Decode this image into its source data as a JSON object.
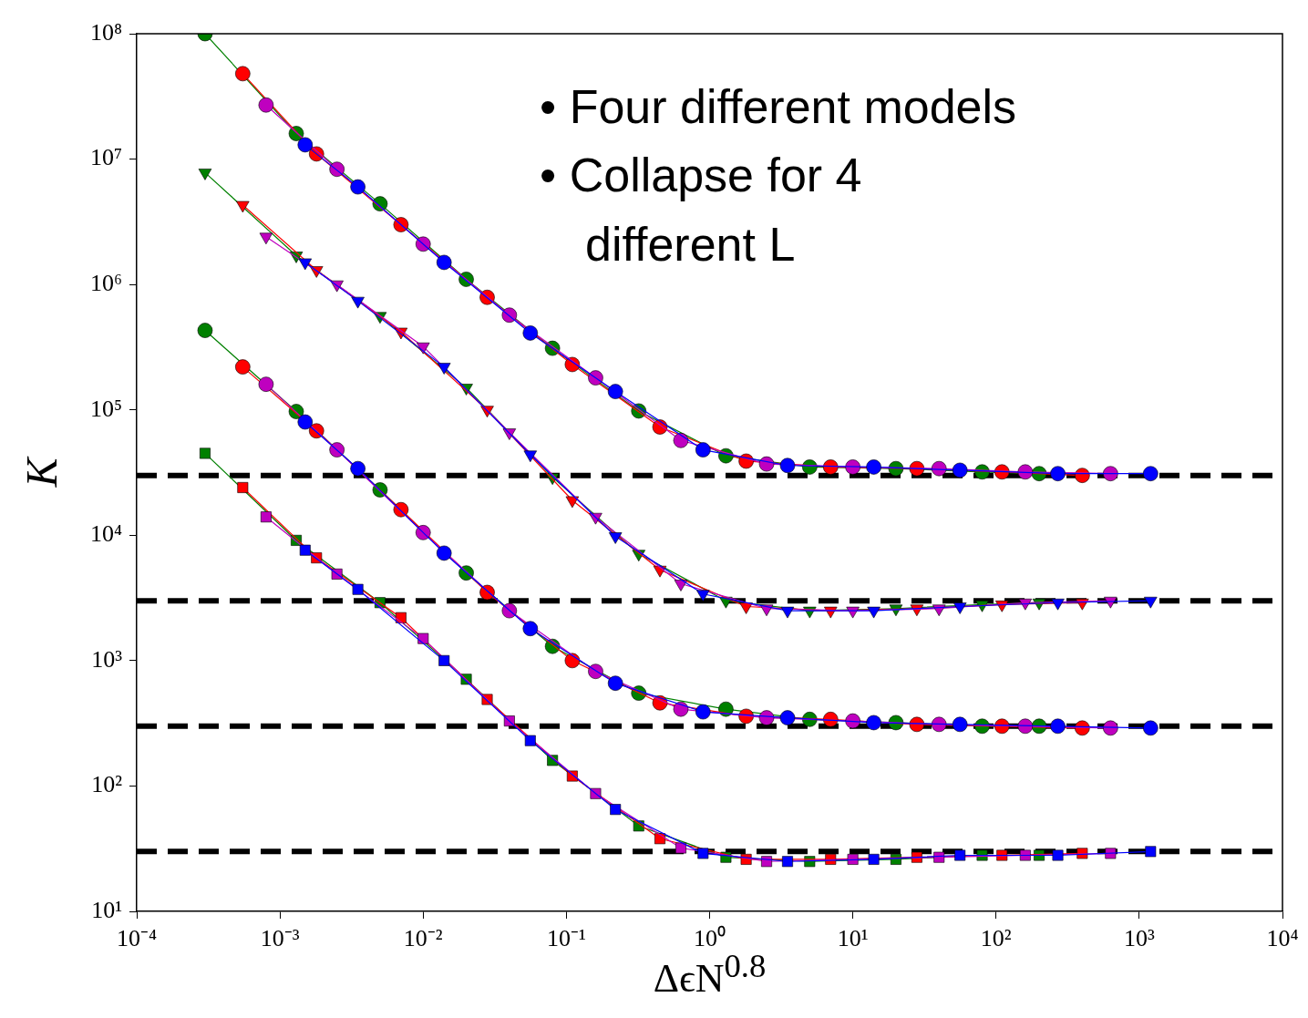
{
  "chart_data": {
    "type": "line",
    "xlabel": "ΔϵN$^{0.8}$",
    "ylabel": "K",
    "log": "xy",
    "grid": false,
    "legend": false,
    "xlim": [
      0.0001,
      10000
    ],
    "ylim": [
      10,
      100000000
    ],
    "xticks": [
      {
        "value": 0.0001,
        "label": "10⁻⁴"
      },
      {
        "value": 0.001,
        "label": "10⁻³"
      },
      {
        "value": 0.01,
        "label": "10⁻²"
      },
      {
        "value": 0.1,
        "label": "10⁻¹"
      },
      {
        "value": 1,
        "label": "10⁰"
      },
      {
        "value": 10,
        "label": "10¹"
      },
      {
        "value": 100,
        "label": "10²"
      },
      {
        "value": 1000,
        "label": "10³"
      },
      {
        "value": 10000,
        "label": "10⁴"
      }
    ],
    "yticks": [
      {
        "value": 10,
        "label": "10¹"
      },
      {
        "value": 100,
        "label": "10²"
      },
      {
        "value": 1000,
        "label": "10³"
      },
      {
        "value": 10000,
        "label": "10⁴"
      },
      {
        "value": 100000,
        "label": "10⁵"
      },
      {
        "value": 1000000,
        "label": "10⁶"
      },
      {
        "value": 10000000,
        "label": "10⁷"
      },
      {
        "value": 100000000,
        "label": "10⁸"
      }
    ],
    "annotations": [
      "• Four different models",
      "• Collapse for 4 different L"
    ],
    "ref_lines": [
      {
        "axis": "y",
        "value": 30000,
        "color": "#000000",
        "line_style": "dashed"
      },
      {
        "axis": "y",
        "value": 3000,
        "color": "#000000",
        "line_style": "dashed"
      },
      {
        "axis": "y",
        "value": 300,
        "color": "#000000",
        "line_style": "dashed"
      },
      {
        "axis": "y",
        "value": 30,
        "color": "#000000",
        "line_style": "dashed"
      }
    ],
    "series": [
      {
        "color": "#008000",
        "marker": "circle",
        "x": [
          0.0003,
          0.0013,
          0.005,
          0.02,
          0.08,
          0.32,
          1.3,
          5,
          20,
          80,
          200
        ],
        "values": [
          100000000,
          16000000,
          4400000,
          1100000,
          310000,
          98000,
          43000,
          35000,
          34000,
          32000,
          31000
        ]
      },
      {
        "color": "#ff0000",
        "marker": "circle",
        "x": [
          0.00055,
          0.0018,
          0.007,
          0.028,
          0.11,
          0.45,
          1.8,
          7,
          28,
          110,
          400
        ],
        "values": [
          48000000,
          11000000,
          3000000,
          790000,
          230000,
          73000,
          39000,
          35000,
          34000,
          32000,
          30000
        ]
      },
      {
        "color": "#bf00bf",
        "marker": "circle",
        "x": [
          0.0008,
          0.0025,
          0.01,
          0.04,
          0.16,
          0.63,
          2.5,
          10,
          40,
          160,
          630
        ],
        "values": [
          27000000,
          8300000,
          2100000,
          570000,
          180000,
          57000,
          37000,
          35000,
          34000,
          32000,
          31000
        ]
      },
      {
        "color": "#0000ff",
        "marker": "circle",
        "x": [
          0.0015,
          0.0035,
          0.014,
          0.056,
          0.22,
          0.9,
          3.5,
          14,
          56,
          270,
          1200
        ],
        "values": [
          13000000,
          6000000,
          1500000,
          410000,
          140000,
          48000,
          36000,
          35000,
          33000,
          31000,
          31000
        ]
      },
      {
        "color": "#008000",
        "marker": "triangle",
        "x": [
          0.0003,
          0.0013,
          0.005,
          0.02,
          0.08,
          0.32,
          1.3,
          5,
          20,
          80,
          200
        ],
        "values": [
          7800000,
          1700000,
          560000,
          150000,
          29000,
          7100,
          3000,
          2500,
          2600,
          2800,
          2900
        ]
      },
      {
        "color": "#ff0000",
        "marker": "triangle",
        "x": [
          0.00055,
          0.0018,
          0.007,
          0.028,
          0.11,
          0.45,
          1.8,
          7,
          28,
          110,
          400
        ],
        "values": [
          4300000,
          1300000,
          420000,
          100000,
          19000,
          5300,
          2700,
          2500,
          2600,
          2800,
          2900
        ]
      },
      {
        "color": "#bf00bf",
        "marker": "triangle",
        "x": [
          0.0008,
          0.0025,
          0.01,
          0.04,
          0.16,
          0.63,
          2.5,
          10,
          40,
          160,
          630
        ],
        "values": [
          2400000,
          1000000,
          320000,
          66000,
          14000,
          4100,
          2600,
          2500,
          2600,
          2900,
          3000
        ]
      },
      {
        "color": "#0000ff",
        "marker": "triangle",
        "x": [
          0.0015,
          0.0035,
          0.014,
          0.056,
          0.22,
          0.9,
          3.5,
          14,
          56,
          270,
          1200
        ],
        "values": [
          1500000,
          740000,
          220000,
          44000,
          9800,
          3400,
          2500,
          2500,
          2700,
          2900,
          3000
        ]
      },
      {
        "color": "#008000",
        "marker": "circle",
        "x": [
          0.0003,
          0.0013,
          0.005,
          0.02,
          0.08,
          0.32,
          1.3,
          5,
          20,
          80,
          200
        ],
        "values": [
          430000,
          97000,
          23000,
          5000,
          1300,
          550,
          410,
          340,
          320,
          300,
          300
        ]
      },
      {
        "color": "#ff0000",
        "marker": "circle",
        "x": [
          0.00055,
          0.0018,
          0.007,
          0.028,
          0.11,
          0.45,
          1.8,
          7,
          28,
          110,
          400
        ],
        "values": [
          220000,
          68000,
          16000,
          3500,
          1000,
          460,
          360,
          340,
          310,
          300,
          290
        ]
      },
      {
        "color": "#bf00bf",
        "marker": "circle",
        "x": [
          0.0008,
          0.0025,
          0.01,
          0.04,
          0.16,
          0.63,
          2.5,
          10,
          40,
          160,
          630
        ],
        "values": [
          160000,
          48000,
          10500,
          2500,
          820,
          410,
          350,
          330,
          310,
          300,
          290
        ]
      },
      {
        "color": "#0000ff",
        "marker": "circle",
        "x": [
          0.0015,
          0.0035,
          0.014,
          0.056,
          0.22,
          0.9,
          3.5,
          14,
          56,
          270,
          1200
        ],
        "values": [
          80000,
          34000,
          7200,
          1800,
          660,
          390,
          350,
          320,
          310,
          300,
          290
        ]
      },
      {
        "color": "#008000",
        "marker": "square",
        "x": [
          0.0003,
          0.0013,
          0.005,
          0.02,
          0.08,
          0.32,
          1.3,
          5,
          20,
          80,
          200
        ],
        "values": [
          45000,
          9100,
          2900,
          710,
          160,
          48,
          27,
          25,
          26,
          28,
          28
        ]
      },
      {
        "color": "#ff0000",
        "marker": "square",
        "x": [
          0.00055,
          0.0018,
          0.007,
          0.028,
          0.11,
          0.45,
          1.8,
          7,
          28,
          110,
          400
        ],
        "values": [
          24000,
          6600,
          2200,
          490,
          120,
          38,
          26,
          26,
          27,
          28,
          29
        ]
      },
      {
        "color": "#bf00bf",
        "marker": "square",
        "x": [
          0.0008,
          0.0025,
          0.01,
          0.04,
          0.16,
          0.63,
          2.5,
          10,
          40,
          160,
          630
        ],
        "values": [
          14000,
          4900,
          1500,
          330,
          87,
          32,
          25,
          26,
          27,
          28,
          29
        ]
      },
      {
        "color": "#0000ff",
        "marker": "square",
        "x": [
          0.0015,
          0.0035,
          0.014,
          0.056,
          0.22,
          0.9,
          3.5,
          14,
          56,
          270,
          1200
        ],
        "values": [
          7600,
          3700,
          1000,
          230,
          65,
          29,
          25,
          26,
          28,
          28,
          30
        ]
      }
    ]
  }
}
